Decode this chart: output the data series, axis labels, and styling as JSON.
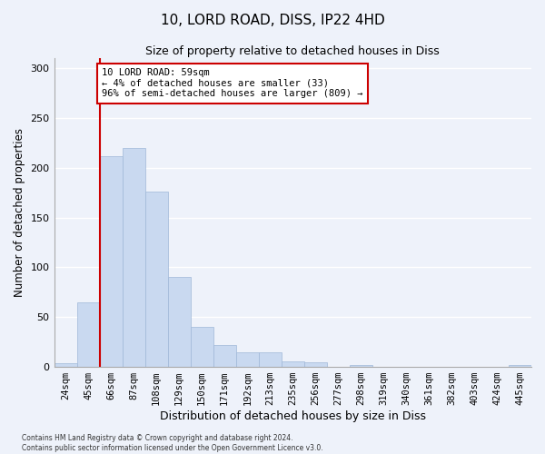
{
  "title": "10, LORD ROAD, DISS, IP22 4HD",
  "subtitle": "Size of property relative to detached houses in Diss",
  "xlabel": "Distribution of detached houses by size in Diss",
  "ylabel": "Number of detached properties",
  "bar_color": "#c9d9f0",
  "bar_edge_color": "#a0b8d8",
  "background_color": "#eef2fa",
  "grid_color": "#ffffff",
  "categories": [
    "24sqm",
    "45sqm",
    "66sqm",
    "87sqm",
    "108sqm",
    "129sqm",
    "150sqm",
    "171sqm",
    "192sqm",
    "213sqm",
    "235sqm",
    "256sqm",
    "277sqm",
    "298sqm",
    "319sqm",
    "340sqm",
    "361sqm",
    "382sqm",
    "403sqm",
    "424sqm",
    "445sqm"
  ],
  "values": [
    4,
    65,
    212,
    220,
    176,
    90,
    40,
    22,
    15,
    15,
    6,
    5,
    0,
    2,
    0,
    0,
    0,
    0,
    0,
    0,
    2
  ],
  "ylim": [
    0,
    310
  ],
  "yticks": [
    0,
    50,
    100,
    150,
    200,
    250,
    300
  ],
  "property_line_x": 1.5,
  "annotation_title": "10 LORD ROAD: 59sqm",
  "annotation_line1": "← 4% of detached houses are smaller (33)",
  "annotation_line2": "96% of semi-detached houses are larger (809) →",
  "annotation_box_color": "#ffffff",
  "annotation_box_edge_color": "#cc0000",
  "vline_color": "#cc0000",
  "footer_line1": "Contains HM Land Registry data © Crown copyright and database right 2024.",
  "footer_line2": "Contains public sector information licensed under the Open Government Licence v3.0."
}
